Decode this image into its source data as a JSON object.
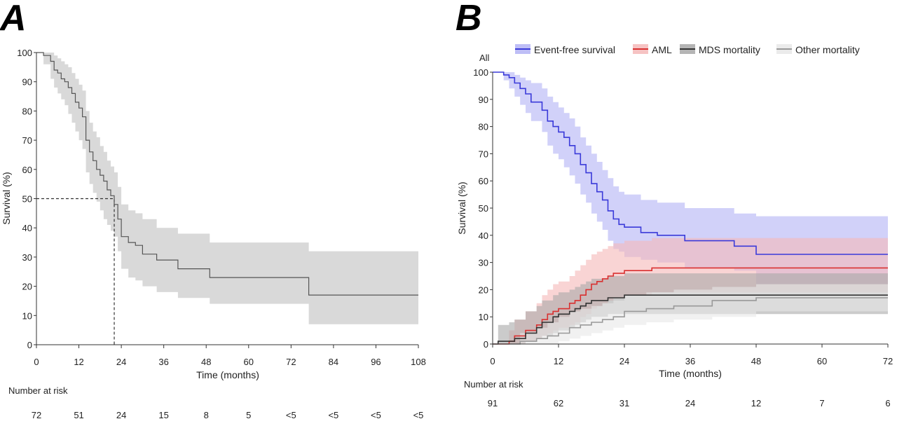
{
  "chart_data": [
    {
      "panel": "A",
      "type": "line",
      "xlabel": "Time (months)",
      "ylabel": "Survival (%)",
      "xlim": [
        0,
        108
      ],
      "ylim": [
        0,
        100
      ],
      "xticks": [
        0,
        12,
        24,
        36,
        48,
        60,
        72,
        84,
        96,
        108
      ],
      "yticks": [
        0,
        10,
        20,
        30,
        40,
        50,
        60,
        70,
        80,
        90,
        100
      ],
      "risk_label": "Number at risk",
      "risk_times": [
        0,
        12,
        24,
        36,
        48,
        60,
        72,
        84,
        96,
        108
      ],
      "risk_values": [
        "72",
        "51",
        "24",
        "15",
        "8",
        "5",
        "<5",
        "<5",
        "<5",
        "<5"
      ],
      "median_marker": {
        "x": 22,
        "y": 50
      },
      "series": [
        {
          "style": "survival",
          "color": "#555555",
          "band_color": "#d9d9d9",
          "x": [
            0,
            2,
            4,
            5,
            6,
            7,
            8,
            9,
            10,
            11,
            12,
            13,
            14,
            15,
            16,
            17,
            18,
            19,
            20,
            21,
            22,
            23,
            24,
            26,
            28,
            30,
            34,
            40,
            49,
            77,
            108
          ],
          "y": [
            100,
            99,
            97,
            94,
            93,
            91,
            90,
            88,
            86,
            83,
            81,
            78,
            70,
            66,
            63,
            60,
            58,
            56,
            53,
            51,
            48,
            43,
            37,
            35,
            34,
            31,
            29,
            26,
            23,
            17,
            17
          ],
          "upper": [
            100,
            100,
            100,
            99,
            98,
            97,
            96,
            95,
            93,
            91,
            89,
            87,
            80,
            76,
            73,
            71,
            68,
            66,
            63,
            61,
            59,
            54,
            48,
            46,
            45,
            43,
            40,
            38,
            35,
            32,
            32
          ],
          "lower": [
            100,
            96,
            91,
            88,
            86,
            84,
            82,
            79,
            76,
            73,
            70,
            67,
            59,
            55,
            52,
            49,
            46,
            43,
            41,
            39,
            37,
            32,
            26,
            23,
            22,
            20,
            18,
            16,
            14,
            7,
            7
          ]
        }
      ]
    },
    {
      "panel": "B",
      "type": "line",
      "subtitle": "All",
      "xlabel": "Time (months)",
      "ylabel": "Survival (%)",
      "xlim": [
        0,
        72
      ],
      "ylim": [
        0,
        100
      ],
      "xticks": [
        0,
        12,
        24,
        36,
        48,
        60,
        72
      ],
      "yticks": [
        0,
        10,
        20,
        30,
        40,
        50,
        60,
        70,
        80,
        90,
        100
      ],
      "risk_label": "Number at risk",
      "risk_times": [
        0,
        12,
        24,
        36,
        48,
        60,
        72
      ],
      "risk_values": [
        "91",
        "62",
        "31",
        "24",
        "12",
        "7",
        "6"
      ],
      "legend_position": "top",
      "series": [
        {
          "name": "Event-free survival",
          "color": "#3a3ad9",
          "band_color": "#b3b3f5",
          "x": [
            0,
            2,
            3,
            4,
            5,
            6,
            7,
            9,
            10,
            11,
            12,
            13,
            14,
            15,
            16,
            17,
            18,
            19,
            20,
            21,
            22,
            23,
            24,
            27,
            30,
            35,
            44,
            48,
            72
          ],
          "y": [
            100,
            99,
            98,
            96,
            94,
            92,
            89,
            86,
            82,
            80,
            78,
            76,
            73,
            70,
            66,
            63,
            59,
            56,
            53,
            49,
            46,
            44,
            43,
            41,
            40,
            38,
            36,
            33,
            33
          ],
          "upper": [
            100,
            100,
            100,
            99,
            98,
            97,
            96,
            94,
            91,
            89,
            87,
            85,
            83,
            80,
            76,
            73,
            70,
            67,
            64,
            61,
            58,
            56,
            55,
            53,
            52,
            50,
            48,
            47,
            47
          ],
          "lower": [
            100,
            97,
            94,
            91,
            88,
            85,
            82,
            78,
            73,
            70,
            68,
            65,
            62,
            59,
            55,
            52,
            48,
            45,
            42,
            38,
            35,
            34,
            32,
            31,
            30,
            28,
            27,
            22,
            22
          ]
        },
        {
          "name": "AML",
          "color": "#d93030",
          "band_color": "#f5b8b8",
          "x": [
            0,
            3,
            4,
            6,
            8,
            9,
            10,
            11,
            12,
            14,
            15,
            16,
            17,
            18,
            19,
            20,
            21,
            22,
            23,
            24,
            29,
            33,
            72
          ],
          "y": [
            0,
            1,
            3,
            5,
            7,
            9,
            11,
            12,
            13,
            15,
            16,
            18,
            20,
            22,
            23,
            24,
            25,
            26,
            26,
            27,
            28,
            28,
            28
          ],
          "upper": [
            0,
            5,
            9,
            12,
            15,
            18,
            20,
            22,
            23,
            25,
            27,
            29,
            31,
            33,
            34,
            35,
            36,
            37,
            37,
            38,
            39,
            39,
            40
          ],
          "lower": [
            0,
            0,
            0,
            1,
            2,
            3,
            4,
            5,
            6,
            7,
            8,
            10,
            11,
            13,
            14,
            15,
            16,
            17,
            17,
            18,
            19,
            19,
            19
          ]
        },
        {
          "name": "MDS mortality",
          "color": "#333333",
          "band_color": "#a8a8a8",
          "x": [
            0,
            1,
            3,
            4,
            6,
            8,
            9,
            11,
            12,
            14,
            15,
            16,
            17,
            18,
            19,
            21,
            24,
            48,
            72
          ],
          "y": [
            0,
            1,
            1,
            2,
            4,
            6,
            8,
            10,
            11,
            12,
            13,
            14,
            15,
            16,
            16,
            17,
            18,
            18,
            18
          ],
          "upper": [
            0,
            7,
            8,
            9,
            12,
            14,
            16,
            18,
            19,
            20,
            21,
            22,
            23,
            24,
            24,
            25,
            26,
            26,
            26
          ],
          "lower": [
            0,
            0,
            0,
            0,
            1,
            2,
            3,
            4,
            5,
            6,
            7,
            8,
            9,
            10,
            10,
            11,
            11,
            11,
            11
          ]
        },
        {
          "name": "Other mortality",
          "color": "#999999",
          "band_color": "#e8e8e8",
          "x": [
            0,
            5,
            8,
            10,
            12,
            14,
            16,
            18,
            20,
            22,
            24,
            28,
            33,
            40,
            48,
            72
          ],
          "y": [
            0,
            1,
            2,
            3,
            4,
            6,
            7,
            8,
            9,
            10,
            12,
            13,
            14,
            16,
            17,
            17
          ],
          "upper": [
            0,
            4,
            6,
            8,
            10,
            12,
            13,
            14,
            15,
            16,
            18,
            19,
            20,
            21,
            22,
            22
          ],
          "lower": [
            0,
            0,
            0,
            0,
            1,
            2,
            3,
            4,
            5,
            6,
            7,
            8,
            9,
            10,
            12,
            12
          ]
        }
      ]
    }
  ]
}
